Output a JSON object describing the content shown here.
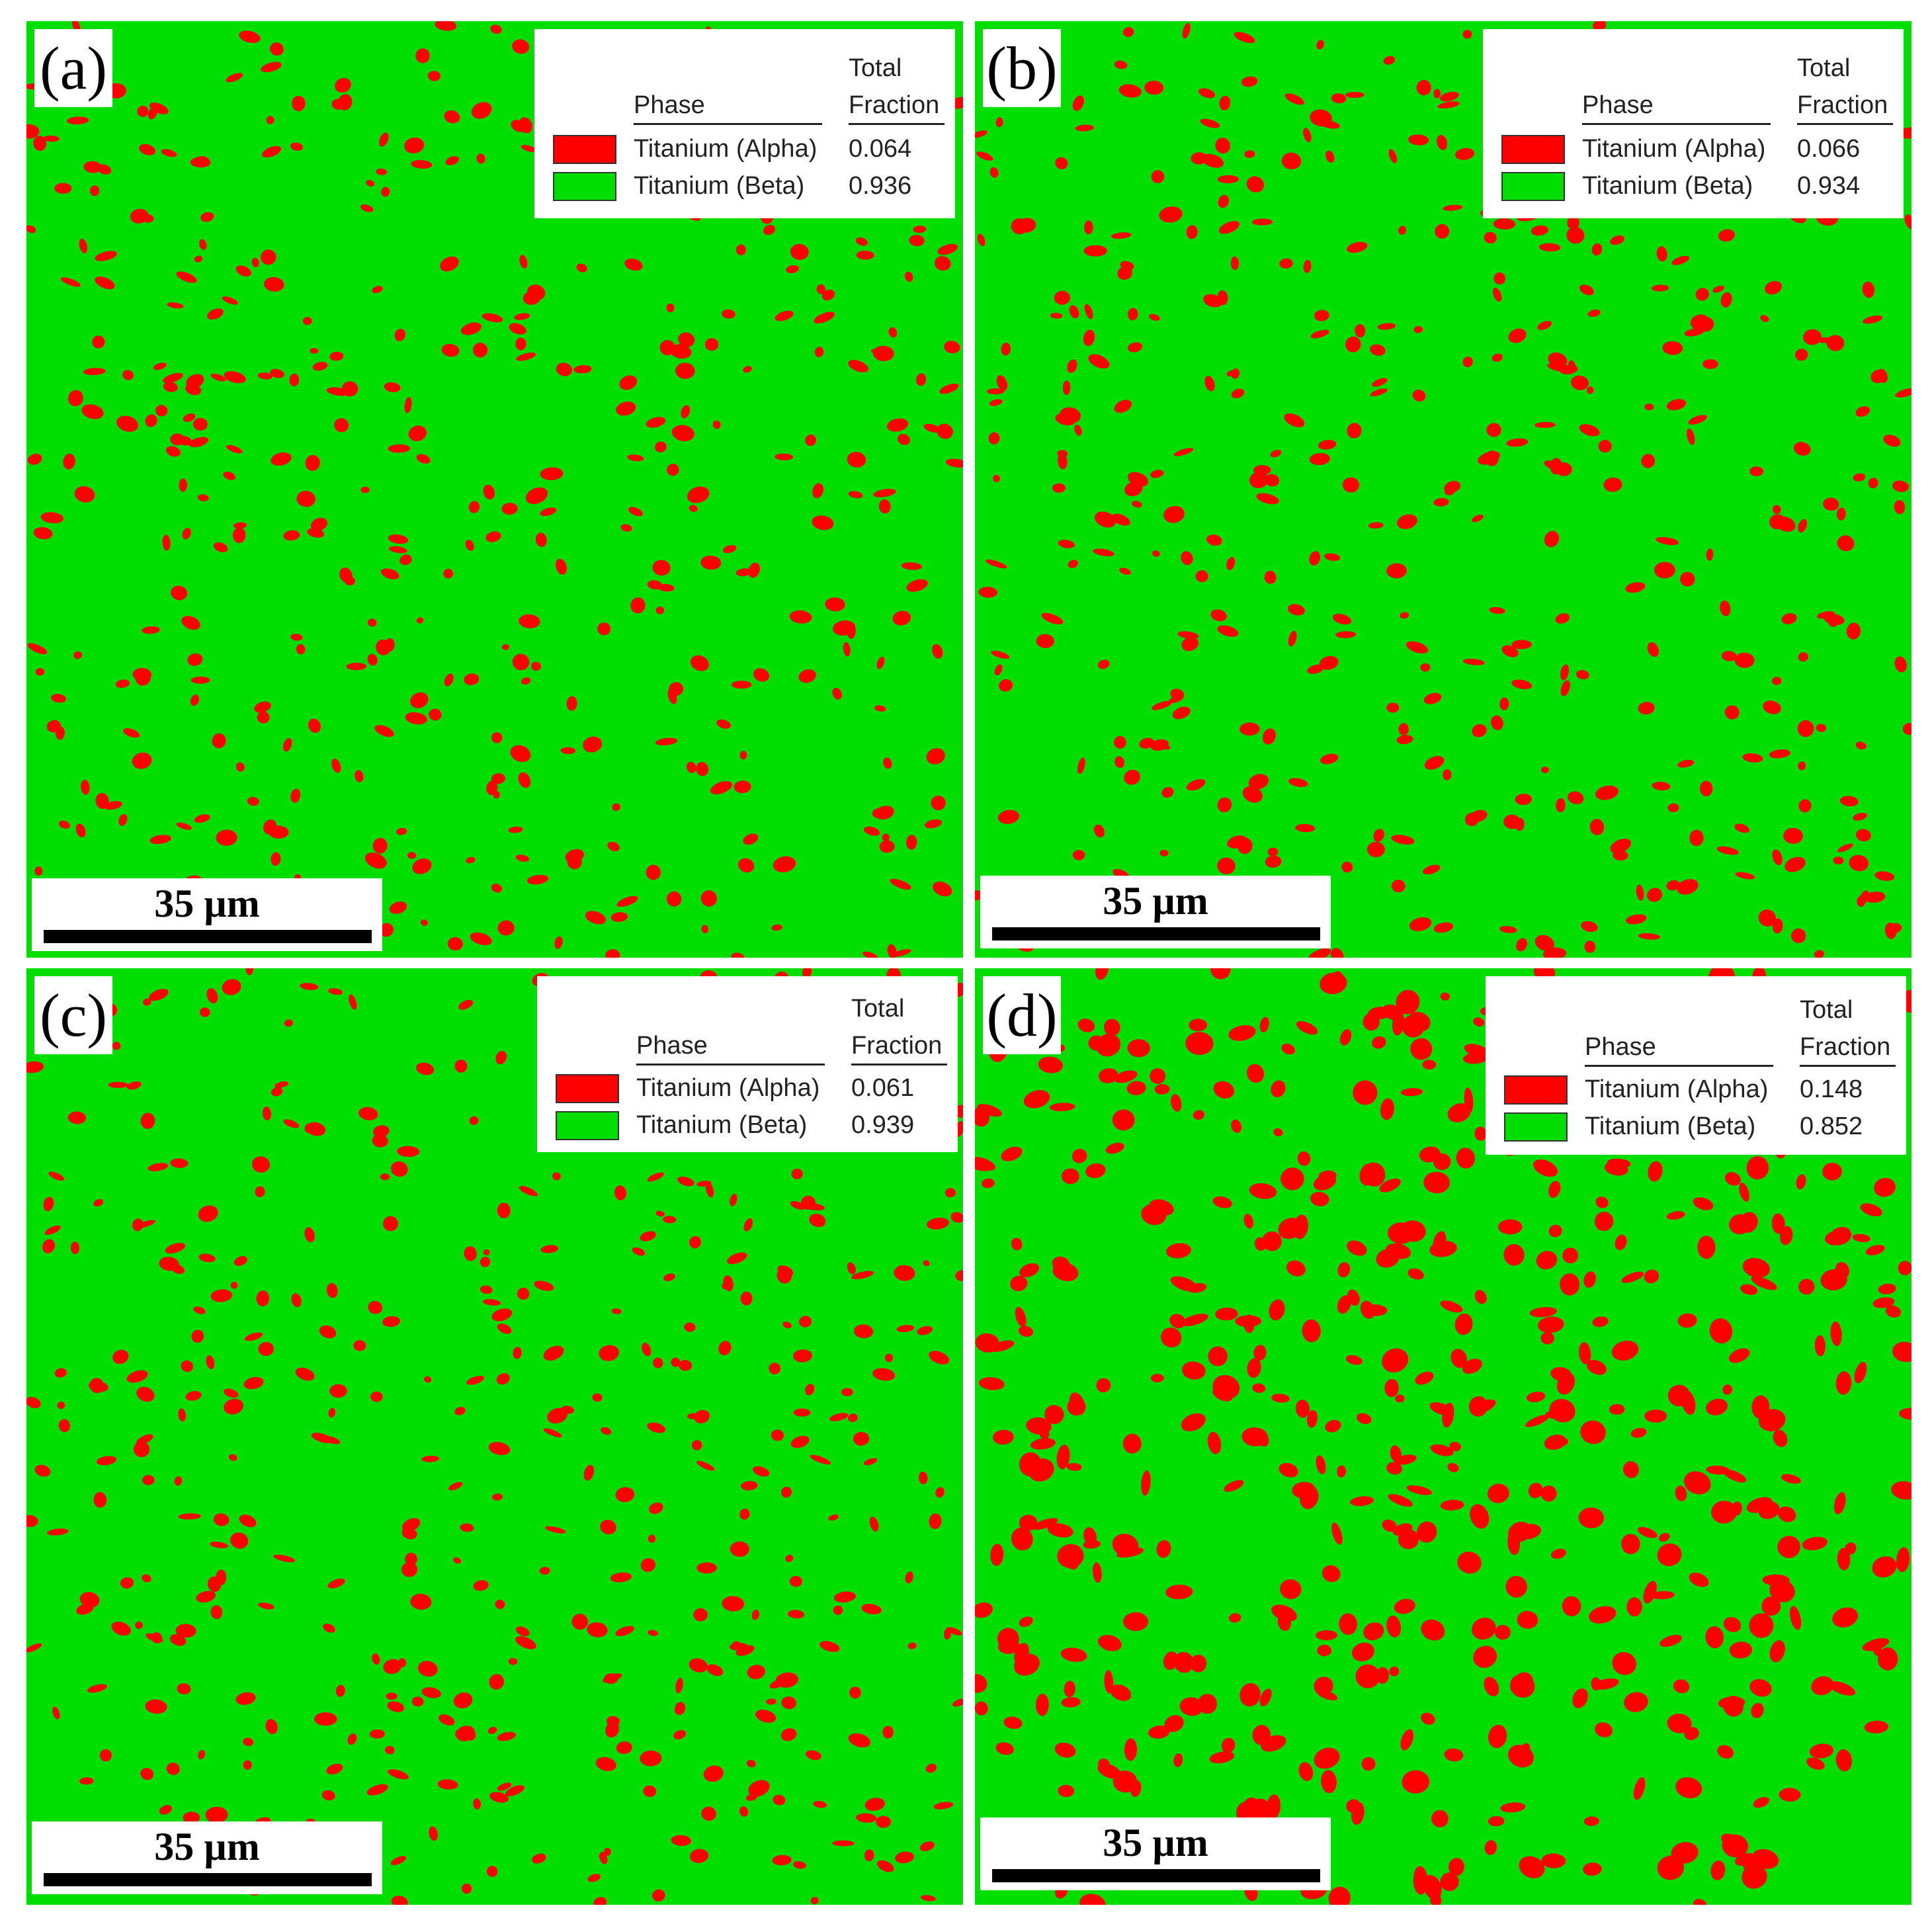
{
  "colors": {
    "alpha": "#ff0000",
    "beta": "#00dd00",
    "background": "#ffffff"
  },
  "legend_headers": {
    "phase": "Phase",
    "total": "Total",
    "fraction": "Fraction"
  },
  "panels": [
    {
      "letter": "(a)",
      "scale_label": "35 µm",
      "phases": [
        {
          "name": "Titanium (Alpha)",
          "fraction": "0.064",
          "color": "#ff0000"
        },
        {
          "name": "Titanium (Beta)",
          "fraction": "0.936",
          "color": "#00dd00"
        }
      ]
    },
    {
      "letter": "(b)",
      "scale_label": "35 µm",
      "phases": [
        {
          "name": "Titanium (Alpha)",
          "fraction": "0.066",
          "color": "#ff0000"
        },
        {
          "name": "Titanium (Beta)",
          "fraction": "0.934",
          "color": "#00dd00"
        }
      ]
    },
    {
      "letter": "(c)",
      "scale_label": "35 µm",
      "phases": [
        {
          "name": "Titanium (Alpha)",
          "fraction": "0.061",
          "color": "#ff0000"
        },
        {
          "name": "Titanium (Beta)",
          "fraction": "0.939",
          "color": "#00dd00"
        }
      ]
    },
    {
      "letter": "(d)",
      "scale_label": "35 µm",
      "phases": [
        {
          "name": "Titanium (Alpha)",
          "fraction": "0.148",
          "color": "#ff0000"
        },
        {
          "name": "Titanium (Beta)",
          "fraction": "0.852",
          "color": "#00dd00"
        }
      ]
    }
  ]
}
